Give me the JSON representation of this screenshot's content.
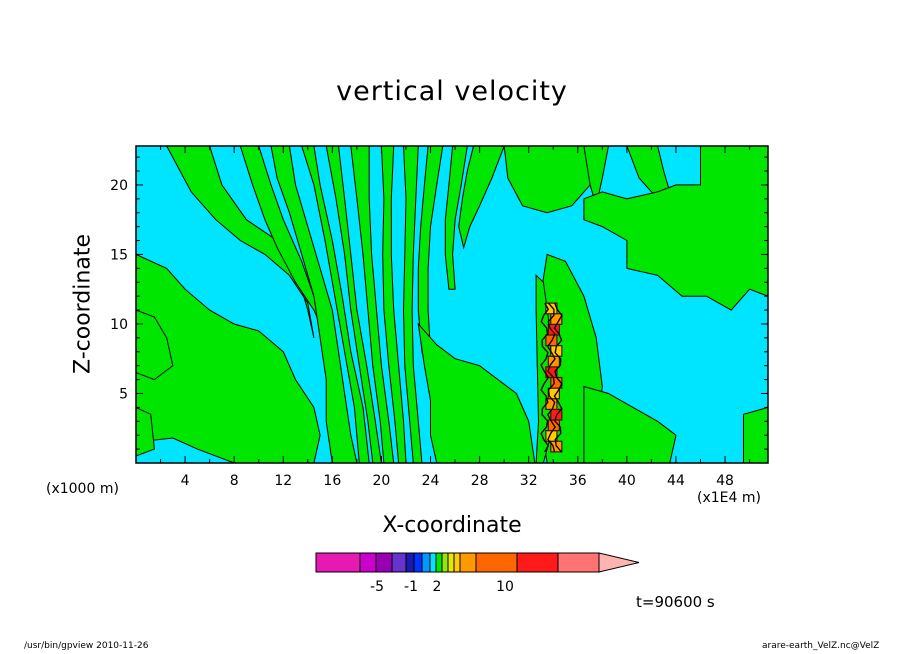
{
  "page": {
    "footer_left": "/usr/bin/gpview   2010-11-26",
    "footer_right": "arare-earth_VelZ.nc@VelZ",
    "time_label": "t=90600  s",
    "x_unit_label": "(x1000 m)",
    "x_scale_label": "(x1E4  m)"
  },
  "colors": {
    "background": "#00e5ff",
    "positive_fill": "#00e600",
    "contour_line": "#000000",
    "colorbar": [
      "#e619b3",
      "#cc00cc",
      "#9900b3",
      "#6633cc",
      "#1a1ab3",
      "#0033ff",
      "#0099ff",
      "#00e5ff",
      "#00e600",
      "#99e600",
      "#e6e600",
      "#ffcc00",
      "#ff9900",
      "#ff6600",
      "#ff1a1a",
      "#ff7373",
      "#ffb3b3"
    ]
  },
  "chart_data": {
    "type": "heatmap",
    "title": "vertical velocity",
    "xlabel": "X-coordinate",
    "ylabel": "Z-coordinate",
    "xlim": [
      0,
      51.5
    ],
    "ylim": [
      0,
      22.8
    ],
    "xticks": [
      4,
      8,
      12,
      16,
      20,
      24,
      28,
      32,
      36,
      40,
      44,
      48
    ],
    "yticks": [
      5,
      10,
      15,
      20
    ],
    "colorbar": {
      "tick_labels": [
        {
          "value": -5,
          "label": "-5"
        },
        {
          "value": -1,
          "label": "-1"
        },
        {
          "value": 2,
          "label": "2"
        },
        {
          "value": 10,
          "label": "10"
        }
      ]
    },
    "regions": [
      {
        "level": "positive",
        "polygon": [
          [
            0,
            15
          ],
          [
            2.5,
            14
          ],
          [
            4,
            12.5
          ],
          [
            6,
            11
          ],
          [
            8,
            10
          ],
          [
            10,
            9.5
          ],
          [
            12,
            8
          ],
          [
            13,
            6
          ],
          [
            14.5,
            4
          ],
          [
            15,
            2
          ],
          [
            14.5,
            0
          ],
          [
            8,
            0
          ],
          [
            5,
            1
          ],
          [
            3,
            1.8
          ],
          [
            0,
            1.5
          ]
        ]
      },
      {
        "level": "positive",
        "polygon": [
          [
            2.5,
            22.8
          ],
          [
            6,
            22.8
          ],
          [
            7,
            20
          ],
          [
            9,
            17.5
          ],
          [
            11.5,
            16
          ],
          [
            13,
            14
          ],
          [
            14,
            11
          ],
          [
            14.5,
            9
          ],
          [
            14,
            11.5
          ],
          [
            12.5,
            13.5
          ],
          [
            10.5,
            15
          ],
          [
            8.5,
            16
          ],
          [
            6.5,
            17.5
          ],
          [
            4.5,
            19.5
          ]
        ]
      },
      {
        "level": "positive",
        "polygon": [
          [
            8.5,
            22.8
          ],
          [
            10,
            22.8
          ],
          [
            11,
            20
          ],
          [
            12,
            17.5
          ],
          [
            13.5,
            14.5
          ],
          [
            14.5,
            12
          ],
          [
            15.5,
            9.5
          ],
          [
            16,
            7
          ],
          [
            15.5,
            9
          ],
          [
            14.5,
            11
          ],
          [
            13,
            13
          ],
          [
            11.5,
            15.5
          ],
          [
            10.5,
            17.5
          ],
          [
            9.5,
            20
          ]
        ]
      },
      {
        "level": "positive",
        "polygon": [
          [
            11,
            22.8
          ],
          [
            12.5,
            22.8
          ],
          [
            13,
            20
          ],
          [
            14,
            17
          ],
          [
            15,
            14
          ],
          [
            16,
            11
          ],
          [
            16.5,
            8
          ],
          [
            17,
            5
          ],
          [
            17.5,
            2
          ],
          [
            18,
            0
          ],
          [
            16,
            0
          ],
          [
            15.5,
            3
          ],
          [
            15.5,
            6
          ],
          [
            15,
            9
          ],
          [
            14.5,
            12
          ],
          [
            13.5,
            15
          ],
          [
            12.5,
            18
          ],
          [
            11.5,
            20.5
          ]
        ]
      },
      {
        "level": "positive",
        "polygon": [
          [
            13.5,
            22.8
          ],
          [
            14.5,
            22.8
          ],
          [
            15,
            20
          ],
          [
            16,
            16
          ],
          [
            16.8,
            12
          ],
          [
            17.5,
            8
          ],
          [
            18.5,
            4
          ],
          [
            19,
            0
          ],
          [
            18.2,
            0
          ],
          [
            17.8,
            4
          ],
          [
            17,
            8
          ],
          [
            16.2,
            12
          ],
          [
            15.4,
            16
          ],
          [
            14.5,
            20
          ]
        ]
      },
      {
        "level": "positive",
        "polygon": [
          [
            15.5,
            22.8
          ],
          [
            16.5,
            22.8
          ],
          [
            17,
            19
          ],
          [
            17.5,
            15
          ],
          [
            18,
            11
          ],
          [
            18.8,
            7
          ],
          [
            19.5,
            3
          ],
          [
            20,
            0
          ],
          [
            19.3,
            0
          ],
          [
            18.9,
            3
          ],
          [
            18.2,
            7
          ],
          [
            17.5,
            11
          ],
          [
            17,
            15
          ],
          [
            16.3,
            19
          ]
        ]
      },
      {
        "level": "positive",
        "polygon": [
          [
            17.5,
            22.8
          ],
          [
            19,
            22.8
          ],
          [
            19,
            19
          ],
          [
            19.2,
            15
          ],
          [
            19.6,
            11
          ],
          [
            20,
            7
          ],
          [
            20.6,
            3
          ],
          [
            21,
            0
          ],
          [
            20.2,
            0
          ],
          [
            19.9,
            3
          ],
          [
            19.3,
            7
          ],
          [
            18.9,
            11
          ],
          [
            18.5,
            15
          ],
          [
            18,
            19
          ]
        ]
      },
      {
        "level": "positive",
        "polygon": [
          [
            20,
            22.8
          ],
          [
            21,
            22.8
          ],
          [
            20.8,
            19
          ],
          [
            20.8,
            15
          ],
          [
            21,
            11
          ],
          [
            21.4,
            7
          ],
          [
            21.8,
            3
          ],
          [
            22,
            0
          ],
          [
            21.4,
            0
          ],
          [
            21.1,
            3
          ],
          [
            20.6,
            7
          ],
          [
            20.2,
            11
          ],
          [
            20.1,
            15
          ],
          [
            20.2,
            19
          ]
        ]
      },
      {
        "level": "positive",
        "polygon": [
          [
            21.8,
            22.8
          ],
          [
            23,
            22.8
          ],
          [
            22.8,
            19
          ],
          [
            22.6,
            15
          ],
          [
            22.5,
            11
          ],
          [
            22.6,
            7
          ],
          [
            23,
            3
          ],
          [
            23.3,
            0
          ],
          [
            22.6,
            0
          ],
          [
            22.3,
            3
          ],
          [
            21.9,
            7
          ],
          [
            21.8,
            11
          ],
          [
            21.9,
            15
          ],
          [
            22,
            19
          ]
        ]
      },
      {
        "level": "positive",
        "polygon": [
          [
            23.8,
            22.8
          ],
          [
            25,
            22.8
          ],
          [
            24.5,
            20
          ],
          [
            24,
            17
          ],
          [
            23.8,
            14
          ],
          [
            23.8,
            11
          ],
          [
            24,
            8
          ],
          [
            24.5,
            6
          ],
          [
            24,
            6
          ],
          [
            23.3,
            8
          ],
          [
            23,
            11
          ],
          [
            23,
            14
          ],
          [
            23.2,
            17
          ],
          [
            23.5,
            20
          ]
        ]
      },
      {
        "level": "positive",
        "polygon": [
          [
            25.8,
            22.8
          ],
          [
            27,
            22.8
          ],
          [
            26.5,
            20
          ],
          [
            26,
            17.5
          ],
          [
            25.8,
            15
          ],
          [
            26,
            12.5
          ],
          [
            25.5,
            12.5
          ],
          [
            25.2,
            15
          ],
          [
            25.2,
            17.5
          ],
          [
            25.5,
            20
          ]
        ]
      },
      {
        "level": "positive",
        "polygon": [
          [
            27.5,
            22.8
          ],
          [
            30,
            22.8
          ],
          [
            29,
            20.5
          ],
          [
            28,
            18.5
          ],
          [
            27.2,
            17
          ],
          [
            26.7,
            15.5
          ],
          [
            26.3,
            17
          ],
          [
            26.6,
            19
          ],
          [
            27,
            21
          ]
        ]
      },
      {
        "level": "positive",
        "polygon": [
          [
            23,
            10
          ],
          [
            24.5,
            8.5
          ],
          [
            26,
            7.5
          ],
          [
            28,
            7
          ],
          [
            29.5,
            6
          ],
          [
            31,
            5
          ],
          [
            32,
            3
          ],
          [
            32.5,
            0
          ],
          [
            24.5,
            0
          ],
          [
            24,
            2
          ],
          [
            24,
            4.5
          ],
          [
            23.5,
            7
          ]
        ]
      },
      {
        "level": "positive",
        "polygon": [
          [
            33.5,
            15
          ],
          [
            35,
            14.5
          ],
          [
            36.5,
            12
          ],
          [
            37.5,
            9
          ],
          [
            38,
            5.5
          ],
          [
            37.5,
            2
          ],
          [
            37,
            0
          ],
          [
            33.5,
            0
          ],
          [
            33,
            3
          ],
          [
            32.7,
            7
          ],
          [
            32.8,
            11
          ]
        ]
      },
      {
        "level": "positive",
        "polygon": [
          [
            36.5,
            5.5
          ],
          [
            38.5,
            5
          ],
          [
            40.5,
            4
          ],
          [
            42.5,
            3
          ],
          [
            44,
            2
          ],
          [
            43.5,
            0
          ],
          [
            36.5,
            0
          ]
        ]
      },
      {
        "level": "positive",
        "polygon": [
          [
            30,
            22.8
          ],
          [
            37,
            22.8
          ],
          [
            37,
            20
          ],
          [
            35.5,
            18.5
          ],
          [
            33.5,
            18
          ],
          [
            31.5,
            18.5
          ],
          [
            30.3,
            20.5
          ]
        ]
      },
      {
        "level": "positive",
        "polygon": [
          [
            36.5,
            22.8
          ],
          [
            38.5,
            22.8
          ],
          [
            38,
            20.5
          ],
          [
            37.5,
            18.5
          ],
          [
            37,
            20
          ]
        ]
      },
      {
        "level": "positive",
        "polygon": [
          [
            40,
            22.8
          ],
          [
            42.5,
            22.8
          ],
          [
            43,
            21
          ],
          [
            43.5,
            19.5
          ],
          [
            42.5,
            19
          ],
          [
            41,
            20.5
          ]
        ]
      },
      {
        "level": "positive",
        "polygon": [
          [
            46,
            22.8
          ],
          [
            51.5,
            22.8
          ],
          [
            51.5,
            12
          ],
          [
            50,
            12.5
          ],
          [
            48.5,
            11
          ],
          [
            46.5,
            12
          ],
          [
            44.5,
            12
          ],
          [
            42.5,
            13.5
          ],
          [
            40,
            14
          ],
          [
            40,
            16
          ],
          [
            38,
            17
          ],
          [
            36.5,
            17.5
          ],
          [
            36.5,
            19
          ],
          [
            38,
            19.5
          ],
          [
            40,
            19
          ],
          [
            42.5,
            19.5
          ],
          [
            44,
            20
          ],
          [
            46,
            20
          ]
        ]
      },
      {
        "level": "positive",
        "polygon": [
          [
            0,
            11
          ],
          [
            1.5,
            10.5
          ],
          [
            2.5,
            9
          ],
          [
            3,
            7
          ],
          [
            1.5,
            6
          ],
          [
            0,
            6.5
          ]
        ]
      },
      {
        "level": "positive",
        "polygon": [
          [
            0,
            4
          ],
          [
            1.2,
            3.5
          ],
          [
            1.5,
            1
          ],
          [
            0,
            0.5
          ]
        ]
      },
      {
        "level": "positive",
        "polygon": [
          [
            49.5,
            3.5
          ],
          [
            51.5,
            4
          ],
          [
            51.5,
            0
          ],
          [
            49.5,
            0
          ]
        ]
      },
      {
        "level": "positive",
        "polygon": [
          [
            32.6,
            13.5
          ],
          [
            33.2,
            13
          ],
          [
            33.6,
            10.5
          ],
          [
            33.8,
            8
          ],
          [
            34,
            5
          ],
          [
            33.8,
            2
          ],
          [
            33.2,
            0
          ],
          [
            32.6,
            0
          ],
          [
            32.8,
            3
          ],
          [
            32.7,
            7
          ],
          [
            32.6,
            11
          ]
        ]
      }
    ],
    "strong_updraft_core": {
      "x_range": [
        33.3,
        34.7
      ],
      "z_range": [
        0.8,
        11.5
      ],
      "max_level": 10
    }
  }
}
